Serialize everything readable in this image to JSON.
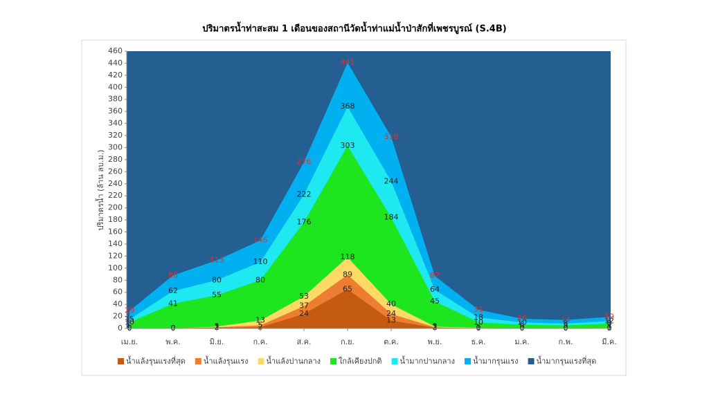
{
  "chart_data": {
    "type": "area",
    "title": "ปริมาตรน้ำท่าสะสม 1 เดือนของสถานีวัดน้ำท่าแม่น้ำป่าสักที่เพชรบูรณ์ (S.4B)",
    "y_label": "ปริมาตรน้ำ (ล้าน ลบ.ม.)",
    "categories": [
      "เม.ย.",
      "พ.ค.",
      "มิ.ย.",
      "ก.ค.",
      "ส.ค.",
      "ก.ย.",
      "ต.ค.",
      "พ.ย.",
      "ธ.ค.",
      "ม.ค.",
      "ก.พ.",
      "มี.ค."
    ],
    "series": [
      {
        "name": "น้ำแล้งรุนแรงที่สุด",
        "color": "#c55a11",
        "values": [
          0,
          0,
          1,
          2,
          24,
          65,
          13,
          1,
          0,
          0,
          0,
          0
        ]
      },
      {
        "name": "น้ำแล้งรุนแรง",
        "color": "#ed7d31",
        "values": [
          0,
          0,
          2,
          5,
          37,
          89,
          24,
          2,
          0,
          0,
          0,
          0
        ]
      },
      {
        "name": "น้ำแล้งปานกลาง",
        "color": "#ffd966",
        "values": [
          0,
          0,
          3,
          13,
          53,
          118,
          40,
          3,
          1,
          0,
          0,
          1
        ]
      },
      {
        "name": "ใกล้เคียงปกติ",
        "color": "#1ee61e",
        "values": [
          10,
          41,
          55,
          80,
          176,
          303,
          184,
          45,
          10,
          6,
          5,
          8
        ]
      },
      {
        "name": "น้ำมากปานกลาง",
        "color": "#1ee8f0",
        "values": [
          15,
          62,
          80,
          110,
          222,
          368,
          244,
          64,
          18,
          10,
          8,
          12
        ]
      },
      {
        "name": "น้ำมากรุนแรง",
        "color": "#00b0f0",
        "values": [
          29,
          88,
          113,
          146,
          276,
          441,
          318,
          87,
          31,
          16,
          14,
          19
        ]
      },
      {
        "name": "น้ำมากรุนแรงที่สุด",
        "color": "#255e91"
      }
    ],
    "ylim": [
      0,
      460
    ],
    "yticks": [
      0,
      20,
      40,
      60,
      80,
      100,
      120,
      140,
      160,
      180,
      200,
      220,
      240,
      260,
      280,
      300,
      320,
      340,
      360,
      380,
      400,
      420,
      440,
      460
    ]
  }
}
